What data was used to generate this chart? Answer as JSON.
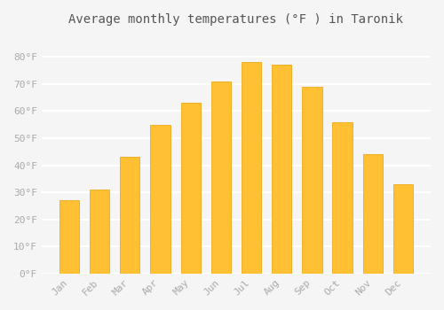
{
  "title": "Average monthly temperatures (°F ) in Taronik",
  "months": [
    "Jan",
    "Feb",
    "Mar",
    "Apr",
    "May",
    "Jun",
    "Jul",
    "Aug",
    "Sep",
    "Oct",
    "Nov",
    "Dec"
  ],
  "values": [
    27,
    31,
    43,
    55,
    63,
    71,
    78,
    77,
    69,
    56,
    44,
    33
  ],
  "bar_color": "#FFC033",
  "bar_edge_color": "#E8A000",
  "background_color": "#F5F5F5",
  "grid_color": "#FFFFFF",
  "tick_label_color": "#AAAAAA",
  "title_color": "#555555",
  "ylim": [
    0,
    88
  ],
  "yticks": [
    0,
    10,
    20,
    30,
    40,
    50,
    60,
    70,
    80
  ],
  "ytick_labels": [
    "0°F",
    "10°F",
    "20°F",
    "30°F",
    "40°F",
    "50°F",
    "60°F",
    "70°F",
    "80°F"
  ]
}
